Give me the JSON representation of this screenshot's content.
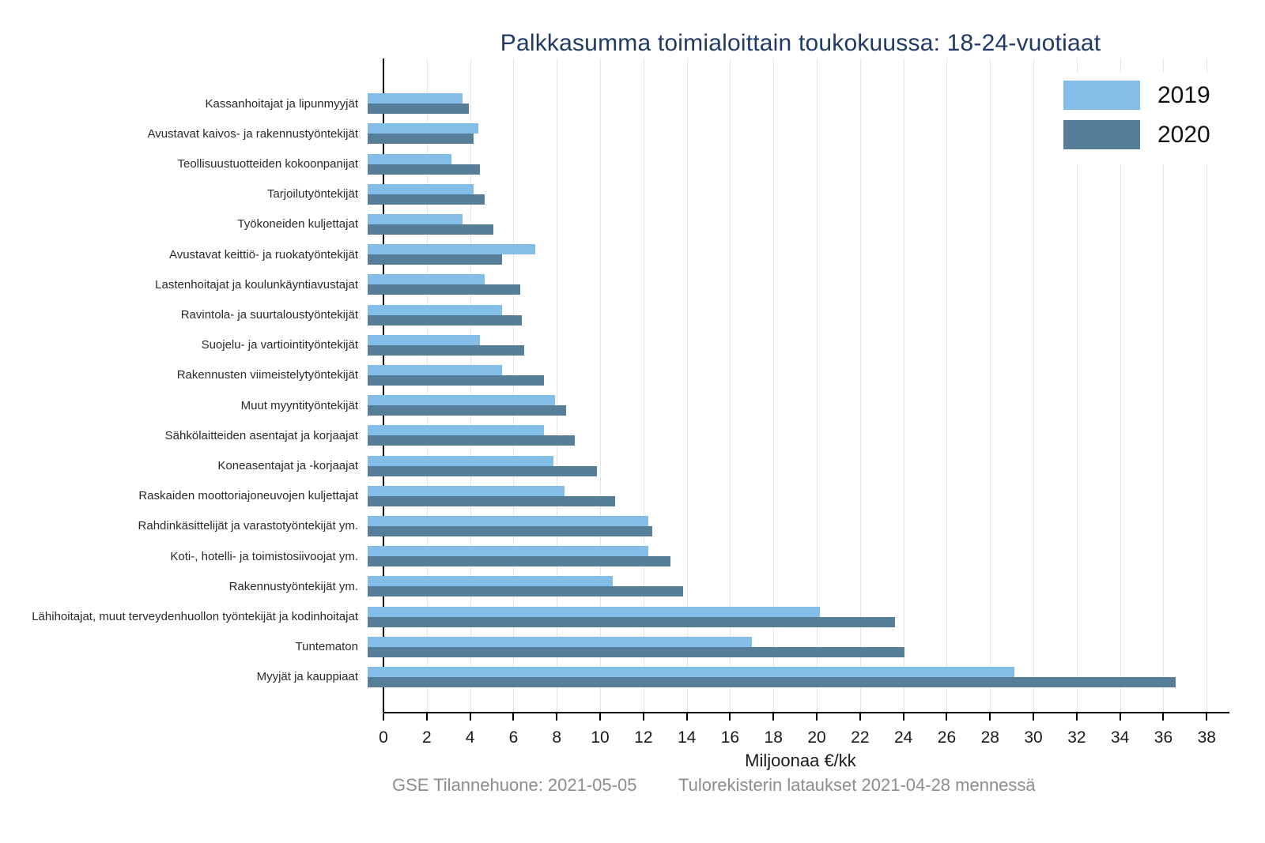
{
  "title": "Palkkasumma toimialoittain toukokuussa: 18-24-vuotiaat",
  "axis": {
    "xlabel": "Miljoonaa €/kk",
    "tick_step": 2,
    "tick_max": 38,
    "xmax": 38.5
  },
  "colors": {
    "series_2019": "#82bee8",
    "series_2020": "#567e99",
    "title": "#1f3a64",
    "grid": "#e7e7e7",
    "axis": "#000000",
    "footer": "#8d8d8d"
  },
  "legend": {
    "items": [
      {
        "label": "2019"
      },
      {
        "label": "2020"
      }
    ]
  },
  "footer": {
    "left": "GSE Tilannehuone: 2021-05-05",
    "right": "Tulorekisterin lataukset 2021-04-28 mennessä"
  },
  "chart_data": {
    "type": "bar",
    "orientation": "horizontal",
    "title": "Palkkasumma toimialoittain toukokuussa: 18-24-vuotiaat",
    "xlabel": "Miljoonaa €/kk",
    "xlim": [
      0,
      38.5
    ],
    "grid": true,
    "legend_position": "top-right",
    "categories": [
      "Kassanhoitajat ja lipunmyyjät",
      "Avustavat kaivos- ja rakennustyöntekijät",
      "Teollisuustuotteiden kokoonpanijat",
      "Tarjoilutyöntekijät",
      "Työkoneiden kuljettajat",
      "Avustavat keittiö- ja ruokatyöntekijät",
      "Lastenhoitajat ja koulunkäyntiavustajat",
      "Ravintola- ja suurtaloustyöntekijät",
      "Suojelu- ja vartiointityöntekijät",
      "Rakennusten viimeistelytyöntekijät",
      "Muut myyntityöntekijät",
      "Sähkölaitteiden asentajat ja korjaajat",
      "Koneasentajat ja -korjaajat",
      "Raskaiden moottoriajoneuvojen kuljettajat",
      "Rahdinkäsittelijät ja varastotyöntekijät ym.",
      "Koti-, hotelli- ja toimistosiivoojat ym.",
      "Rakennustyöntekijät ym.",
      "Lähihoitajat, muut terveydenhuollon työntekijät ja kodinhoitajat",
      "Tuntematon",
      "Myyjät ja kauppiaat"
    ],
    "series": [
      {
        "name": "2019",
        "values": [
          4.3,
          5.0,
          3.8,
          4.8,
          4.3,
          7.6,
          5.3,
          6.1,
          5.1,
          6.1,
          8.5,
          8.0,
          8.4,
          8.9,
          12.7,
          12.7,
          11.1,
          20.5,
          17.4,
          29.3
        ]
      },
      {
        "name": "2020",
        "values": [
          4.6,
          4.8,
          5.1,
          5.3,
          5.7,
          6.1,
          6.9,
          7.0,
          7.1,
          8.0,
          9.0,
          9.4,
          10.4,
          11.2,
          12.9,
          13.7,
          14.3,
          23.9,
          24.3,
          36.6
        ]
      }
    ]
  }
}
